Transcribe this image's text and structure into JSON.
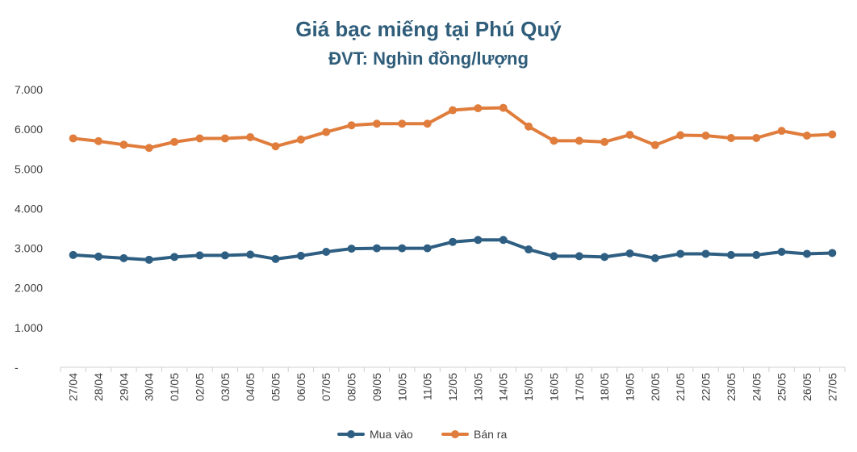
{
  "chart_data": {
    "type": "line",
    "title": "Giá bạc miếng tại Phú Quý",
    "subtitle": "ĐVT: Nghìn đồng/lượng",
    "xlabel": "",
    "ylabel": "",
    "ylim": [
      0,
      7000
    ],
    "y_ticks": [
      "-",
      "1.000",
      "2.000",
      "3.000",
      "4.000",
      "5.000",
      "6.000",
      "7.000"
    ],
    "categories": [
      "27/04",
      "28/04",
      "29/04",
      "30/04",
      "01/05",
      "02/05",
      "03/05",
      "04/05",
      "05/05",
      "06/05",
      "07/05",
      "08/05",
      "09/05",
      "10/05",
      "11/05",
      "12/05",
      "13/05",
      "14/05",
      "15/05",
      "16/05",
      "17/05",
      "18/05",
      "19/05",
      "20/05",
      "21/05",
      "22/05",
      "23/05",
      "24/05",
      "25/05",
      "26/05",
      "27/05"
    ],
    "series": [
      {
        "name": "Mua vào",
        "color": "#2e5f82",
        "values": [
          2830,
          2790,
          2750,
          2710,
          2780,
          2820,
          2820,
          2840,
          2730,
          2810,
          2910,
          2990,
          3000,
          3000,
          3000,
          3160,
          3210,
          3210,
          2970,
          2800,
          2800,
          2780,
          2870,
          2750,
          2860,
          2860,
          2830,
          2830,
          2910,
          2860,
          2880
        ]
      },
      {
        "name": "Bán ra",
        "color": "#e07d3c",
        "values": [
          5770,
          5700,
          5610,
          5530,
          5680,
          5770,
          5770,
          5800,
          5570,
          5740,
          5930,
          6100,
          6140,
          6140,
          6140,
          6480,
          6530,
          6540,
          6070,
          5710,
          5710,
          5680,
          5860,
          5600,
          5850,
          5840,
          5780,
          5780,
          5960,
          5840,
          5870
        ]
      }
    ],
    "grid": false,
    "legend": "bottom"
  }
}
